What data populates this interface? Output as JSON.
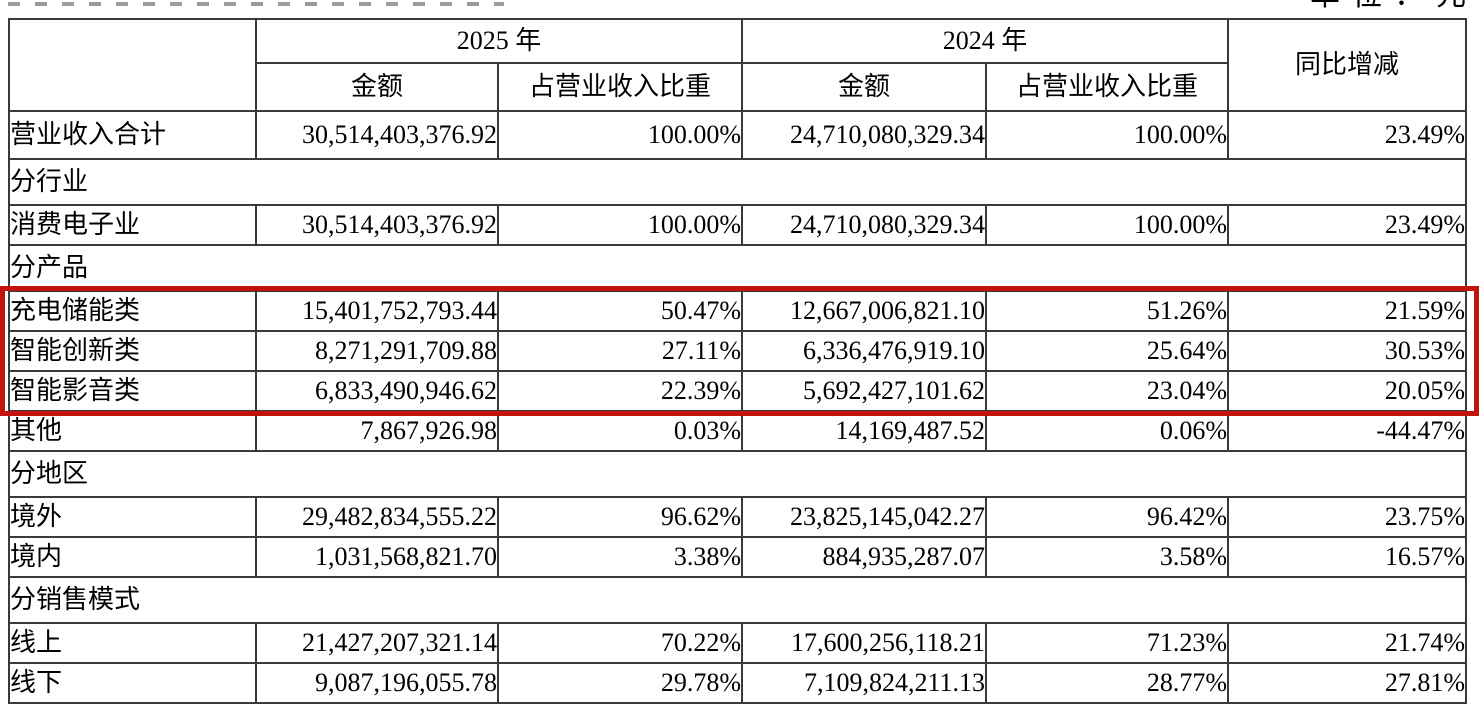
{
  "page": {
    "unit_label": "单位：元"
  },
  "colors": {
    "cell_shade": "#d4d4d4",
    "highlight_border": "#c2140f",
    "table_border": "#3a3a3a"
  },
  "table": {
    "header": {
      "year_2025": "2025 年",
      "year_2024": "2024 年",
      "yoy": "同比增减",
      "amount": "金额",
      "pct_of_revenue": "占营业收入比重"
    },
    "rows": [
      {
        "type": "data",
        "total": true,
        "shaded": true,
        "label": "营业收入合计",
        "amount_2025": "30,514,403,376.92",
        "pct_2025": "100.00%",
        "amount_2024": "24,710,080,329.34",
        "pct_2024": "100.00%",
        "yoy": "23.49%"
      },
      {
        "type": "section",
        "label": "分行业"
      },
      {
        "type": "data",
        "label": "消费电子业",
        "amount_2025": "30,514,403,376.92",
        "pct_2025": "100.00%",
        "amount_2024": "24,710,080,329.34",
        "pct_2024": "100.00%",
        "yoy": "23.49%"
      },
      {
        "type": "section",
        "label": "分产品"
      },
      {
        "type": "data",
        "highlight": true,
        "label": "充电储能类",
        "amount_2025": "15,401,752,793.44",
        "pct_2025": "50.47%",
        "amount_2024": "12,667,006,821.10",
        "pct_2024": "51.26%",
        "yoy": "21.59%"
      },
      {
        "type": "data",
        "highlight": true,
        "label": "智能创新类",
        "amount_2025": "8,271,291,709.88",
        "pct_2025": "27.11%",
        "amount_2024": "6,336,476,919.10",
        "pct_2024": "25.64%",
        "yoy": "30.53%"
      },
      {
        "type": "data",
        "highlight": true,
        "label": "智能影音类",
        "amount_2025": "6,833,490,946.62",
        "pct_2025": "22.39%",
        "amount_2024": "5,692,427,101.62",
        "pct_2024": "23.04%",
        "yoy": "20.05%"
      },
      {
        "type": "data",
        "label": "其他",
        "amount_2025": "7,867,926.98",
        "pct_2025": "0.03%",
        "amount_2024": "14,169,487.52",
        "pct_2024": "0.06%",
        "yoy": "-44.47%"
      },
      {
        "type": "section",
        "label": "分地区"
      },
      {
        "type": "data",
        "label": "境外",
        "amount_2025": "29,482,834,555.22",
        "pct_2025": "96.62%",
        "amount_2024": "23,825,145,042.27",
        "pct_2024": "96.42%",
        "yoy": "23.75%"
      },
      {
        "type": "data",
        "label": "境内",
        "amount_2025": "1,031,568,821.70",
        "pct_2025": "3.38%",
        "amount_2024": "884,935,287.07",
        "pct_2024": "3.58%",
        "yoy": "16.57%"
      },
      {
        "type": "section",
        "label": "分销售模式"
      },
      {
        "type": "data",
        "label": "线上",
        "amount_2025": "21,427,207,321.14",
        "pct_2025": "70.22%",
        "amount_2024": "17,600,256,118.21",
        "pct_2024": "71.23%",
        "yoy": "21.74%"
      },
      {
        "type": "data",
        "label": "线下",
        "amount_2025": "9,087,196,055.78",
        "pct_2025": "29.78%",
        "amount_2024": "7,109,824,211.13",
        "pct_2024": "28.77%",
        "yoy": "27.81%"
      }
    ]
  }
}
